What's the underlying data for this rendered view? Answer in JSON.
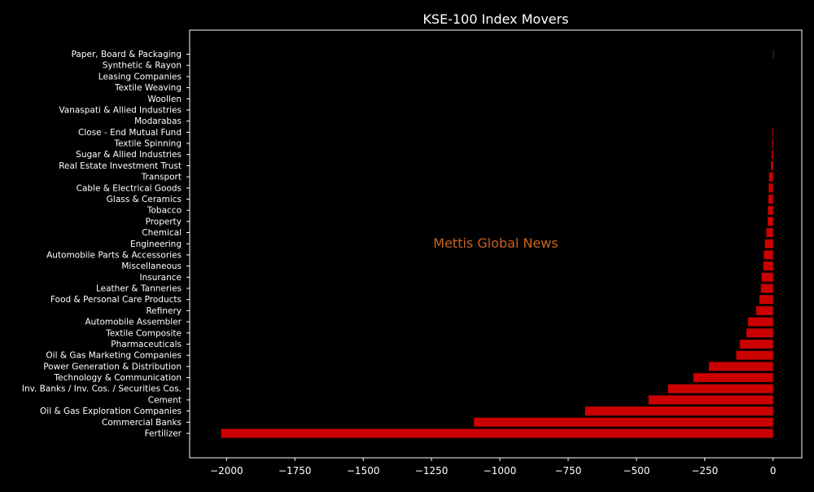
{
  "chart_data": {
    "type": "bar",
    "orientation": "horizontal",
    "title": "KSE-100 Index Movers",
    "watermark": "Mettis Global News",
    "xlabel": "",
    "ylabel": "",
    "xlim": [
      -2135,
      105
    ],
    "x_ticks": [
      -2000,
      -1750,
      -1500,
      -1250,
      -1000,
      -750,
      -500,
      -250,
      0
    ],
    "x_tick_labels": [
      "−2000",
      "−1750",
      "−1500",
      "−1250",
      "−1000",
      "−750",
      "−500",
      "−250",
      "0"
    ],
    "grid": false,
    "legend": "none",
    "categories": [
      "Fertilizer",
      "Commercial Banks",
      "Oil & Gas Exploration Companies",
      "Cement",
      "Inv. Banks / Inv. Cos. / Securities Cos.",
      "Technology & Communication",
      "Power Generation & Distribution",
      "Oil & Gas Marketing Companies",
      "Pharmaceuticals",
      "Textile Composite",
      "Automobile Assembler",
      "Refinery",
      "Food & Personal Care Products",
      "Leather & Tanneries",
      "Insurance",
      "Miscellaneous",
      "Automobile Parts & Accessories",
      "Engineering",
      "Chemical",
      "Property",
      "Tobacco",
      "Glass & Ceramics",
      "Cable & Electrical Goods",
      "Transport",
      "Real Estate Investment Trust",
      "Sugar & Allied Industries",
      "Textile Spinning",
      "Close - End Mutual Fund",
      "Modarabas",
      "Vanaspati & Allied Industries",
      "Woollen",
      "Textile Weaving",
      "Leasing Companies",
      "Synthetic & Rayon",
      "Paper, Board & Packaging"
    ],
    "values": [
      -2020,
      -1095,
      -688,
      -456,
      -385,
      -292,
      -235,
      -135,
      -122,
      -98,
      -92,
      -62,
      -50,
      -45,
      -42,
      -36,
      -34,
      -30,
      -25,
      -20,
      -19,
      -17,
      -16,
      -15,
      -8,
      -5,
      -4,
      -3,
      0,
      0,
      0,
      0,
      0,
      0,
      2
    ],
    "colors": {
      "negative": "#cc0000",
      "positive": "#008000",
      "axes": "#ffffff",
      "background": "#000000",
      "watermark": "#c8641e"
    }
  }
}
